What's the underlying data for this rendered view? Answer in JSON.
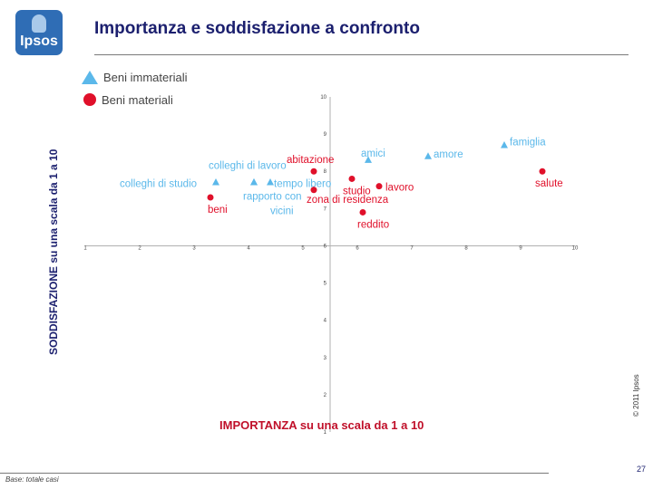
{
  "header": {
    "logo_text": "Ipsos",
    "title": "Importanza e soddisfazione a confronto"
  },
  "legend": {
    "immaterial": "Beni immateriali",
    "material": "Beni materiali"
  },
  "colors": {
    "immaterial": "#5bb8ea",
    "material": "#e0102a",
    "title": "#1b1f6e",
    "xlabel": "#c0102a"
  },
  "footer": {
    "copyright": "© 2011 Ipsos",
    "page_number": "27",
    "base_note": "Base: totale casi"
  },
  "chart_data": {
    "type": "scatter",
    "title": "Importanza e soddisfazione a confronto",
    "xlabel": "IMPORTANZA su una scala da 1 a 10",
    "ylabel": "SODDISFAZIONE su una scala da 1 a 10",
    "xlim": [
      1,
      10
    ],
    "ylim": [
      1,
      10
    ],
    "x_ticks": [
      1,
      2,
      3,
      4,
      5,
      6,
      7,
      8,
      9,
      10
    ],
    "y_ticks": [
      1,
      2,
      3,
      4,
      5,
      6,
      7,
      8,
      9,
      10
    ],
    "x_cross": 5.5,
    "y_cross": 6,
    "grid": false,
    "legend_position": "top-left",
    "series": [
      {
        "name": "Beni immateriali",
        "marker": "triangle",
        "points": [
          {
            "label": "famiglia",
            "x": 8.7,
            "y": 8.7
          },
          {
            "label": "amore",
            "x": 7.3,
            "y": 8.4
          },
          {
            "label": "amici",
            "x": 6.2,
            "y": 8.3
          },
          {
            "label": "colleghi di lavoro",
            "x": 4.1,
            "y": 7.7
          },
          {
            "label": "colleghi di studio",
            "x": 3.4,
            "y": 7.7
          },
          {
            "label": "tempo libero",
            "x": 4.4,
            "y": 7.7
          },
          {
            "label": "rapporto con vicini",
            "x": 4.1,
            "y": 7.7
          }
        ]
      },
      {
        "name": "Beni materiali",
        "marker": "circle",
        "points": [
          {
            "label": "abitazione",
            "x": 5.2,
            "y": 8.0
          },
          {
            "label": "salute",
            "x": 9.4,
            "y": 8.0
          },
          {
            "label": "studio",
            "x": 5.9,
            "y": 7.8
          },
          {
            "label": "lavoro",
            "x": 6.4,
            "y": 7.6
          },
          {
            "label": "zona di residenza",
            "x": 5.2,
            "y": 7.5
          },
          {
            "label": "beni",
            "x": 3.3,
            "y": 7.3
          },
          {
            "label": "reddito",
            "x": 6.1,
            "y": 6.9
          }
        ]
      }
    ]
  }
}
